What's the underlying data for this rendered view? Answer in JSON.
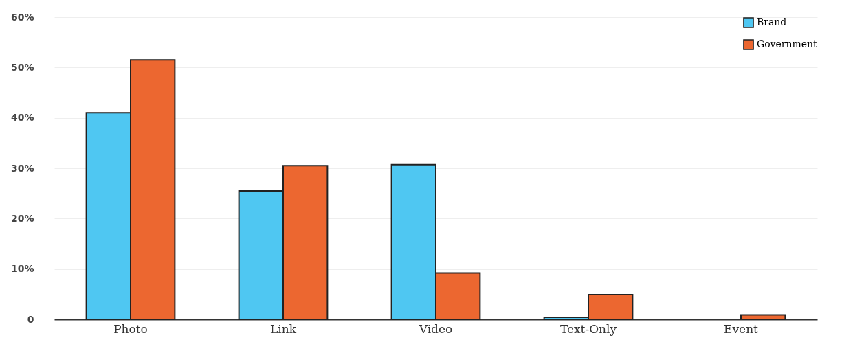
{
  "chart_data": {
    "type": "bar",
    "categories": [
      "Photo",
      "Link",
      "Video",
      "Text-Only",
      "Event"
    ],
    "series": [
      {
        "name": "Brand",
        "color": "#4fc7f2",
        "values": [
          41,
          25.5,
          30.7,
          0.4,
          null
        ]
      },
      {
        "name": "Government",
        "color": "#ec6730",
        "values": [
          51.5,
          30.5,
          9.2,
          4.9,
          0.9
        ]
      }
    ],
    "ylim": [
      0,
      60
    ],
    "yticks": [
      0,
      {
        "value": 10,
        "label": "10%"
      },
      {
        "value": 20,
        "label": "20%"
      },
      {
        "value": 30,
        "label": "30%"
      },
      {
        "value": 40,
        "label": "40%"
      },
      {
        "value": 50,
        "label": "50%"
      },
      {
        "value": 60,
        "label": "60%"
      }
    ],
    "grid": "y",
    "legend": "top right"
  }
}
